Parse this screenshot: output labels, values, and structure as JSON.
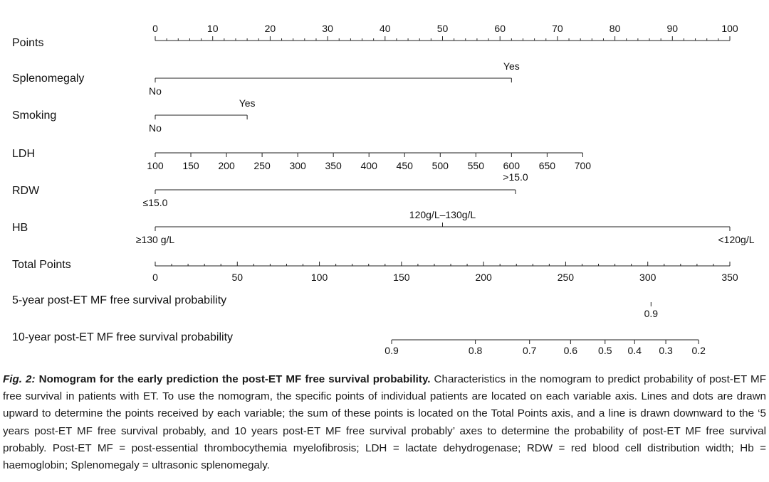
{
  "chart_data": {
    "type": "nomogram",
    "axes": [
      {
        "label": "Points",
        "min": 0,
        "max": 100,
        "ticks": [
          {
            "value": 0,
            "label": "0"
          },
          {
            "value": 10,
            "label": "10"
          },
          {
            "value": 20,
            "label": "20"
          },
          {
            "value": 30,
            "label": "30"
          },
          {
            "value": 40,
            "label": "40"
          },
          {
            "value": 50,
            "label": "50"
          },
          {
            "value": 60,
            "label": "60"
          },
          {
            "value": 70,
            "label": "70"
          },
          {
            "value": 80,
            "label": "80"
          },
          {
            "value": 90,
            "label": "90"
          },
          {
            "value": 100,
            "label": "100"
          }
        ],
        "minor_step": 2
      },
      {
        "label": "Splenomegaly",
        "levels": [
          {
            "label": "No",
            "points": 0
          },
          {
            "label": "Yes",
            "points": 62
          }
        ]
      },
      {
        "label": "Smoking",
        "levels": [
          {
            "label": "No",
            "points": 0
          },
          {
            "label": "Yes",
            "points": 16
          }
        ]
      },
      {
        "label": "LDH",
        "levels": [
          {
            "label": "100",
            "points": 0
          },
          {
            "label": "150",
            "points": 6.2
          },
          {
            "label": "200",
            "points": 12.4
          },
          {
            "label": "250",
            "points": 18.6
          },
          {
            "label": "300",
            "points": 24.8
          },
          {
            "label": "350",
            "points": 31
          },
          {
            "label": "400",
            "points": 37.2
          },
          {
            "label": "450",
            "points": 43.4
          },
          {
            "label": "500",
            "points": 49.6
          },
          {
            "label": "550",
            "points": 55.8
          },
          {
            "label": "600",
            "points": 62
          },
          {
            "label": "650",
            "points": 68.2
          },
          {
            "label": "700",
            "points": 74.4
          }
        ]
      },
      {
        "label": "RDW",
        "levels": [
          {
            "label": "≤15.0",
            "points": 0
          },
          {
            "label": ">15.0",
            "points": 62.7
          }
        ]
      },
      {
        "label": "HB",
        "levels": [
          {
            "label": "≥130 g/L",
            "points": 0
          },
          {
            "label": "120g/L–130g/L",
            "points": 50
          },
          {
            "label": "<120g/L",
            "points": 100
          }
        ]
      },
      {
        "label": "Total Points",
        "min": 0,
        "max": 350,
        "ticks": [
          {
            "value": 0,
            "label": "0"
          },
          {
            "value": 50,
            "label": "50"
          },
          {
            "value": 100,
            "label": "100"
          },
          {
            "value": 150,
            "label": "150"
          },
          {
            "value": 200,
            "label": "200"
          },
          {
            "value": 250,
            "label": "250"
          },
          {
            "value": 300,
            "label": "300"
          },
          {
            "value": 350,
            "label": "350"
          }
        ],
        "minor_step": 10
      },
      {
        "label": "5-year post-ET MF free survival probability",
        "levels": [
          {
            "label": "0.9",
            "total_points": 302
          }
        ]
      },
      {
        "label": "10-year post-ET MF free survival probability",
        "levels": [
          {
            "label": "0.9",
            "total_points": 144
          },
          {
            "label": "0.8",
            "total_points": 195
          },
          {
            "label": "0.7",
            "total_points": 228
          },
          {
            "label": "0.6",
            "total_points": 253
          },
          {
            "label": "0.5",
            "total_points": 274
          },
          {
            "label": "0.4",
            "total_points": 292
          },
          {
            "label": "0.3",
            "total_points": 311
          },
          {
            "label": "0.2",
            "total_points": 331
          }
        ]
      }
    ]
  },
  "caption": {
    "fig_num": "Fig. 2:",
    "fig_title": "Nomogram for the early prediction the post-ET MF free survival probability.",
    "text": "Characteristics in the nomogram to predict probability of post-ET MF free survival in patients with ET. To use the nomogram, the specific points of individual patients are located on each variable axis. Lines and dots are drawn upward to determine the points received by each variable; the sum of these points is located on the Total Points axis, and a line is drawn downward to the ‘5 years post-ET MF free survival probably, and 10 years post-ET MF free survival probably’ axes to determine the probability of post-ET MF free survival probably. Post-ET MF = post-essential thrombocythemia myelofibrosis; LDH = lactate dehydrogenase; RDW = red blood cell distribution width; Hb = haemoglobin; Splenomegaly = ultrasonic splenomegaly."
  }
}
